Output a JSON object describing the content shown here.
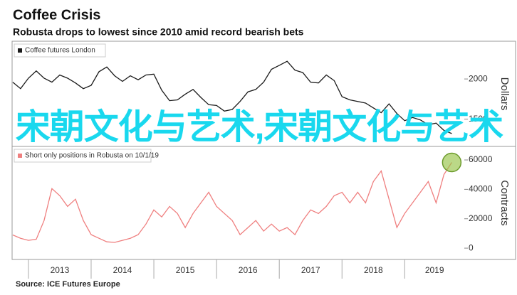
{
  "header": {
    "title": "Coffee Crisis",
    "subtitle": "Robusta drops to lowest since 2010 amid record bearish bets"
  },
  "chart_data": [
    {
      "type": "line",
      "y_label": "Dollars",
      "x": [
        2012.75,
        2012.875,
        2013,
        2013.125,
        2013.25,
        2013.375,
        2013.5,
        2013.625,
        2013.75,
        2013.875,
        2014,
        2014.125,
        2014.25,
        2014.375,
        2014.5,
        2014.625,
        2014.75,
        2014.875,
        2015,
        2015.125,
        2015.25,
        2015.375,
        2015.5,
        2015.625,
        2015.75,
        2015.875,
        2016,
        2016.125,
        2016.25,
        2016.375,
        2016.5,
        2016.625,
        2016.75,
        2016.875,
        2017,
        2017.125,
        2017.25,
        2017.375,
        2017.5,
        2017.625,
        2017.75,
        2017.875,
        2018,
        2018.125,
        2018.25,
        2018.375,
        2018.5,
        2018.625,
        2018.75,
        2018.875,
        2019,
        2019.125,
        2019.25,
        2019.375,
        2019.5,
        2019.625,
        2019.75
      ],
      "xlim": [
        2012.74,
        2019.95
      ],
      "ylim": [
        1160,
        2470
      ],
      "yticks": [
        1500,
        2000
      ],
      "series": [
        {
          "name": "Coffee futures London",
          "color": "#1a1a1a",
          "values": [
            1960,
            1880,
            2010,
            2100,
            2010,
            1960,
            2050,
            2010,
            1950,
            1880,
            1920,
            2090,
            2150,
            2040,
            1970,
            2040,
            1990,
            2050,
            2060,
            1860,
            1730,
            1740,
            1810,
            1870,
            1770,
            1680,
            1670,
            1600,
            1620,
            1720,
            1840,
            1870,
            1960,
            2120,
            2170,
            2220,
            2110,
            2080,
            1960,
            1950,
            2050,
            1980,
            1780,
            1740,
            1720,
            1700,
            1640,
            1580,
            1690,
            1570,
            1480,
            1520,
            1490,
            1430,
            1450,
            1360,
            1320
          ]
        }
      ]
    },
    {
      "type": "line",
      "y_label": "Contracts",
      "x": [
        2012.75,
        2012.875,
        2013,
        2013.125,
        2013.25,
        2013.375,
        2013.5,
        2013.625,
        2013.75,
        2013.875,
        2014,
        2014.125,
        2014.25,
        2014.375,
        2014.5,
        2014.625,
        2014.75,
        2014.875,
        2015,
        2015.125,
        2015.25,
        2015.375,
        2015.5,
        2015.625,
        2015.75,
        2015.875,
        2016,
        2016.125,
        2016.25,
        2016.375,
        2016.5,
        2016.625,
        2016.75,
        2016.875,
        2017,
        2017.125,
        2017.25,
        2017.375,
        2017.5,
        2017.625,
        2017.75,
        2017.875,
        2018,
        2018.125,
        2018.25,
        2018.375,
        2018.5,
        2018.625,
        2018.75,
        2018.875,
        2019,
        2019.125,
        2019.25,
        2019.375,
        2019.5,
        2019.625,
        2019.75
      ],
      "xlim": [
        2012.74,
        2019.95
      ],
      "xticks": [
        2013,
        2014,
        2015,
        2016,
        2017,
        2018,
        2019
      ],
      "x_labels": [
        "2013",
        "2014",
        "2015",
        "2016",
        "2017",
        "2018",
        "2019"
      ],
      "ylim": [
        -7700,
        69200
      ],
      "yticks": [
        0,
        20000,
        40000,
        60000
      ],
      "highlight_last": true,
      "series": [
        {
          "name": "Short only positions in Robusta on 10/1/19",
          "color": "#ef7f7f",
          "values": [
            9000,
            6700,
            5300,
            6000,
            18800,
            40500,
            35700,
            28400,
            33300,
            18800,
            9200,
            6700,
            4300,
            3900,
            5300,
            6700,
            9200,
            16400,
            26000,
            21200,
            28400,
            23600,
            14000,
            23600,
            30800,
            38000,
            28400,
            23600,
            18800,
            9200,
            14000,
            18800,
            11600,
            16400,
            11600,
            14000,
            9200,
            18800,
            26000,
            23600,
            28400,
            35700,
            38000,
            30800,
            38000,
            30800,
            45300,
            52500,
            33300,
            14000,
            23600,
            30800,
            38000,
            45300,
            30800,
            50100,
            58300
          ]
        }
      ]
    }
  ],
  "source": "Source: ICE Futures Europe",
  "overlay_text": "宋朝文化与艺术,宋朝文化与艺术"
}
